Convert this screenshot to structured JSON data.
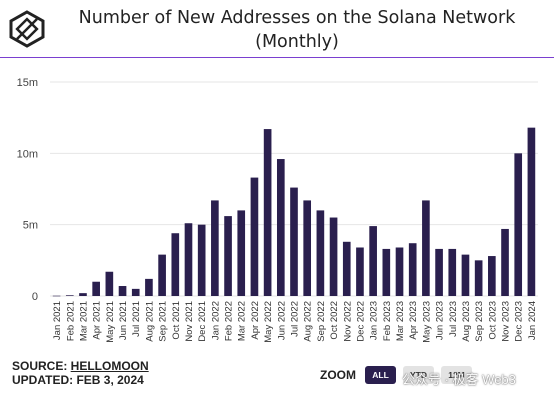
{
  "header": {
    "title_line1": "Number of New Addresses on the Solana Network",
    "title_line2": "(Monthly)"
  },
  "footer": {
    "source_label": "SOURCE: ",
    "source_name": "HELLOMOON",
    "updated": "UPDATED: FEB 3, 2024"
  },
  "zoom": {
    "label": "ZOOM",
    "options": [
      "ALL",
      "YTD",
      "12M"
    ],
    "active": "ALL"
  },
  "watermark": "公众号 · 极客 Web3",
  "colors": {
    "bar": "#2a1f4e",
    "accent": "#7a3fd0",
    "grid": "#e6e6e6"
  },
  "chart_data": {
    "type": "bar",
    "categories": [
      "Jan 2021",
      "Feb 2021",
      "Mar 2021",
      "Apr 2021",
      "May 2021",
      "Jun 2021",
      "Jul 2021",
      "Aug 2021",
      "Sep 2021",
      "Oct 2021",
      "Nov 2021",
      "Dec 2021",
      "Jan 2022",
      "Feb 2022",
      "Mar 2022",
      "Apr 2022",
      "May 2022",
      "Jun 2022",
      "Jul 2022",
      "Aug 2022",
      "Sep 2022",
      "Oct 2022",
      "Nov 2022",
      "Dec 2022",
      "Jan 2023",
      "Feb 2023",
      "Mar 2023",
      "Apr 2023",
      "May 2023",
      "Jun 2023",
      "Jul 2023",
      "Aug 2023",
      "Sep 2023",
      "Oct 2023",
      "Nov 2023",
      "Dec 2023",
      "Jan 2024"
    ],
    "values": [
      0.02,
      0.05,
      0.2,
      1.0,
      1.7,
      0.7,
      0.5,
      1.2,
      2.9,
      4.4,
      5.1,
      5.0,
      6.7,
      5.6,
      6.0,
      8.3,
      11.7,
      9.6,
      7.6,
      6.7,
      6.0,
      5.5,
      3.8,
      3.4,
      4.9,
      3.3,
      3.4,
      3.7,
      6.7,
      3.3,
      3.3,
      2.9,
      2.5,
      2.8,
      4.7,
      10.0,
      11.8
    ],
    "ylim": [
      0,
      15
    ],
    "yticks": [
      0,
      5,
      10,
      15
    ],
    "ytick_labels": [
      "0",
      "5m",
      "10m",
      "15m"
    ],
    "grid": true
  }
}
